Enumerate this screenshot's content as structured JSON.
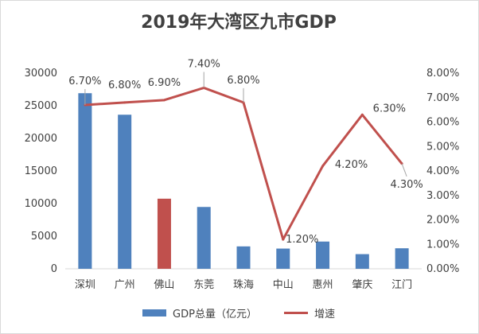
{
  "chart_data": {
    "type": "bar",
    "title": "2019年大湾区九市GDP",
    "categories": [
      "深圳",
      "广州",
      "佛山",
      "东莞",
      "珠海",
      "中山",
      "惠州",
      "肇庆",
      "江门"
    ],
    "series": [
      {
        "name": "GDP总量（亿元）",
        "type": "bar",
        "axis": "left",
        "values": [
          26927,
          23629,
          10751,
          9482,
          3436,
          3101,
          4177,
          2248,
          3147
        ],
        "bar_colors": [
          "#4f81bd",
          "#4f81bd",
          "#c0504d",
          "#4f81bd",
          "#4f81bd",
          "#4f81bd",
          "#4f81bd",
          "#4f81bd",
          "#4f81bd"
        ]
      },
      {
        "name": "增速",
        "type": "line",
        "axis": "right",
        "values": [
          6.7,
          6.8,
          6.9,
          7.4,
          6.8,
          1.2,
          4.2,
          6.3,
          4.3
        ],
        "labels": [
          "6.70%",
          "6.80%",
          "6.90%",
          "7.40%",
          "6.80%",
          "1.20%",
          "4.20%",
          "6.30%",
          "4.30%"
        ],
        "color": "#c0504d"
      }
    ],
    "y_left": {
      "min": 0,
      "max": 30000,
      "ticks": [
        "0",
        "5000",
        "10000",
        "15000",
        "20000",
        "25000",
        "30000"
      ]
    },
    "y_right": {
      "min": 0,
      "max": 8,
      "ticks": [
        "0.00%",
        "1.00%",
        "2.00%",
        "3.00%",
        "4.00%",
        "5.00%",
        "6.00%",
        "7.00%",
        "8.00%"
      ]
    },
    "grid": false,
    "legend_position": "bottom",
    "colors": {
      "bar": "#4f81bd",
      "highlight_bar": "#c0504d",
      "line": "#c0504d"
    }
  }
}
